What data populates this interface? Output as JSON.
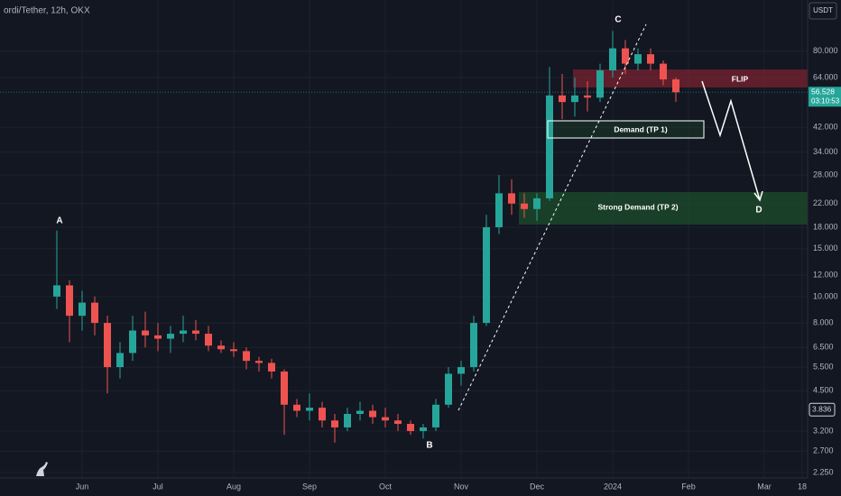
{
  "chart_data": {
    "type": "candlestick",
    "title": "ordi/Tether, 12h, OKX",
    "currency": "USDT",
    "log_scale": true,
    "grid": true,
    "up_color": "#26a69a",
    "down_color": "#ef5350",
    "categories": [
      null,
      null,
      "Jun",
      null,
      null,
      null,
      null,
      null,
      "Jul",
      null,
      null,
      null,
      null,
      null,
      "Aug",
      null,
      null,
      null,
      null,
      null,
      "Sep",
      null,
      null,
      null,
      null,
      null,
      "Oct",
      null,
      null,
      null,
      null,
      null,
      "Nov",
      null,
      null,
      null,
      null,
      null,
      "Dec",
      null,
      null,
      null,
      null,
      null,
      "2024",
      null,
      null,
      null,
      null,
      null,
      "Feb",
      null,
      null,
      null,
      null,
      null,
      "Mar",
      null,
      null,
      "18"
    ],
    "open": [
      10,
      11,
      8.5,
      9.5,
      8,
      5.5,
      6.2,
      7.5,
      7.2,
      7,
      7.3,
      7.5,
      7.3,
      6.6,
      6.4,
      6.3,
      5.8,
      5.7,
      5.3,
      4,
      3.8,
      3.9,
      3.5,
      3.3,
      3.7,
      3.8,
      3.6,
      3.5,
      3.4,
      3.2,
      3.3,
      4,
      5.2,
      5.5,
      8,
      18,
      24,
      22,
      21,
      23,
      55,
      52,
      55,
      54,
      68,
      82,
      72,
      78,
      72,
      63,
      null,
      null,
      null,
      null,
      null,
      null,
      null,
      null,
      null,
      null
    ],
    "high": [
      17.5,
      11.5,
      10.5,
      10,
      8.5,
      6.8,
      8.5,
      8.8,
      8,
      7.8,
      8.5,
      8.2,
      7.8,
      6.9,
      6.8,
      6.5,
      6,
      5.9,
      5.4,
      4.2,
      4.4,
      4.1,
      3.7,
      3.9,
      4.1,
      4,
      3.9,
      3.7,
      3.5,
      3.4,
      4.2,
      5.5,
      5.8,
      8.5,
      20,
      28,
      27,
      24,
      24,
      70,
      66,
      64,
      62,
      72,
      95,
      88,
      82,
      82,
      74,
      64,
      null,
      null,
      null,
      null,
      null,
      null,
      null,
      null,
      null,
      null
    ],
    "low": [
      9,
      6.8,
      7.5,
      7.2,
      4.4,
      5,
      5.8,
      6.5,
      6.3,
      6.2,
      6.8,
      6.9,
      6.3,
      6.2,
      6,
      5.4,
      5.3,
      5,
      3.1,
      3.6,
      3.5,
      3.3,
      2.9,
      3.2,
      3.5,
      3.4,
      3.3,
      3.2,
      3.1,
      3,
      3.2,
      3.9,
      4.7,
      5.3,
      7.8,
      17,
      20,
      19.5,
      19,
      22.5,
      45,
      46,
      48,
      52,
      64,
      66,
      68,
      68,
      60,
      52,
      null,
      null,
      null,
      null,
      null,
      null,
      null,
      null,
      null,
      null
    ],
    "close": [
      11,
      8.5,
      9.5,
      8,
      5.5,
      6.2,
      7.5,
      7.2,
      7,
      7.3,
      7.5,
      7.3,
      6.6,
      6.4,
      6.3,
      5.8,
      5.7,
      5.3,
      4,
      3.8,
      3.9,
      3.5,
      3.3,
      3.7,
      3.8,
      3.6,
      3.5,
      3.4,
      3.2,
      3.3,
      4,
      5.2,
      5.5,
      8,
      18,
      24,
      22,
      21,
      23,
      55,
      52,
      55,
      54,
      68,
      82,
      72,
      78,
      72,
      63,
      56.528,
      null,
      null,
      null,
      null,
      null,
      null,
      null,
      null,
      null,
      null
    ],
    "ylim": [
      2.15,
      123.5
    ],
    "yticks": [
      {
        "value": 2.25,
        "label": "2.250"
      },
      {
        "value": 2.7,
        "label": "2.700"
      },
      {
        "value": 3.2,
        "label": "3.200"
      },
      {
        "value": 4.5,
        "label": "4.500"
      },
      {
        "value": 5.5,
        "label": "5.500"
      },
      {
        "value": 6.5,
        "label": "6.500"
      },
      {
        "value": 8,
        "label": "8.000"
      },
      {
        "value": 10,
        "label": "10.000"
      },
      {
        "value": 12,
        "label": "12.000"
      },
      {
        "value": 15,
        "label": "15.000"
      },
      {
        "value": 18,
        "label": "18.000"
      },
      {
        "value": 22,
        "label": "22.000"
      },
      {
        "value": 28,
        "label": "28.000"
      },
      {
        "value": 34,
        "label": "34.000"
      },
      {
        "value": 42,
        "label": "42.000"
      },
      {
        "value": 64,
        "label": "64.000"
      },
      {
        "value": 80,
        "label": "80.000"
      }
    ],
    "last_price": 56.528,
    "countdown": "03:10:53",
    "price_marker": 3.836,
    "annotations": [
      "A",
      "B",
      "C",
      "D",
      "FLIP",
      "Demand (TP 1)",
      "Strong Demand (TP 2)"
    ]
  }
}
